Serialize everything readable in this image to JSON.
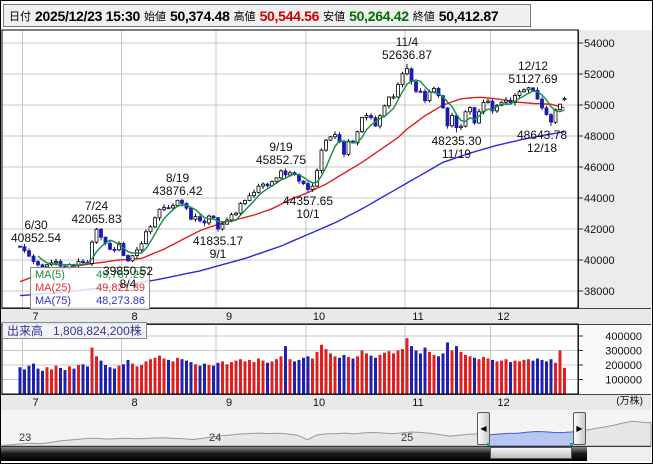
{
  "info_bar": {
    "date_label": "日付",
    "date_value": "2025/12/23 15:30",
    "open_label": "始値",
    "open_value": "50,374.48",
    "high_label": "高値",
    "high_value": "50,544.56",
    "low_label": "安値",
    "low_value": "50,264.42",
    "close_label": "終値",
    "close_value": "50,412.87"
  },
  "colors": {
    "high": "#cc0000",
    "low": "#007000",
    "text": "#000000",
    "grid": "#c8c8c8",
    "border": "#000000",
    "candle_up_fill": "#ffffff",
    "candle_up_stroke": "#000000",
    "candle_down": "#1b1bb3",
    "vol_up": "#e02020",
    "vol_down": "#2020b0",
    "ma5": "#0f8f3f",
    "ma25": "#e02020",
    "ma75": "#2a2ae0",
    "nav_line": "#999999",
    "nav_fill": "#e6e6e6",
    "nav_win_line": "#4a5fd0",
    "nav_win_fill": "#b8c6f2"
  },
  "ma_legend": [
    {
      "label": "MA(5)",
      "value": "49,767.25",
      "color": "#1a8a4a"
    },
    {
      "label": "MA(25)",
      "value": "49,821.39",
      "color": "#e03030"
    },
    {
      "label": "MA(75)",
      "value": "48,273.86",
      "color": "#3333cc"
    }
  ],
  "volume_box": {
    "label": "出来高",
    "value": "1,808,824,200株"
  },
  "icons": {
    "left_arrow": "◀",
    "right_arrow": "▶"
  },
  "chart_data": {
    "type": "candlestick+volume",
    "title": "",
    "price_axis": {
      "ticks": [
        54000,
        52000,
        50000,
        48000,
        46000,
        44000,
        42000,
        40000,
        38000
      ],
      "range_top": 55000,
      "range_bottom": 37000
    },
    "volume_axis": {
      "ticks": [
        400000,
        300000,
        200000,
        100000
      ],
      "unit": "(万株)"
    },
    "month_labels": [
      "7",
      "8",
      "9",
      "10",
      "11",
      "12"
    ],
    "month_start_indexes": [
      1,
      23,
      44,
      64,
      86,
      105
    ],
    "closes": [
      40853,
      40600,
      40250,
      39900,
      39690,
      39560,
      39690,
      39820,
      39910,
      39600,
      39480,
      39700,
      39670,
      39910,
      39850,
      39780,
      41150,
      41990,
      41470,
      41080,
      40690,
      40660,
      41080,
      40290,
      39950,
      40280,
      40650,
      41050,
      41820,
      42140,
      42720,
      43270,
      43380,
      43360,
      43510,
      43850,
      43650,
      43340,
      42630,
      42800,
      42520,
      42390,
      42830,
      42720,
      42000,
      42310,
      42580,
      42920,
      43020,
      43640,
      43840,
      44150,
      44370,
      44770,
      44900,
      44790,
      45060,
      45300,
      45750,
      45490,
      45630,
      45510,
      45090,
      44930,
      44550,
      44770,
      45770,
      47090,
      47730,
      47950,
      48090,
      47620,
      46820,
      47670,
      47560,
      48280,
      49190,
      49320,
      49180,
      48640,
      49300,
      49950,
      50510,
      50520,
      51310,
      52010,
      52340,
      51500,
      50890,
      50880,
      50280,
      50840,
      51070,
      50600,
      49820,
      48660,
      49320,
      48540,
      48630,
      49560,
      49830,
      48840,
      49560,
      50170,
      50250,
      49620,
      49980,
      50180,
      50310,
      50170,
      50620,
      50860,
      50980,
      51110,
      50950,
      50380,
      49810,
      49380,
      48890,
      49700,
      50050,
      50413
    ],
    "volumes": [
      185000,
      170000,
      195000,
      210000,
      175000,
      160000,
      185000,
      170000,
      195000,
      180000,
      165000,
      190000,
      175000,
      200000,
      205000,
      190000,
      320000,
      260000,
      230000,
      200000,
      185000,
      175000,
      195000,
      205000,
      235000,
      210000,
      190000,
      200000,
      225000,
      240000,
      250000,
      265000,
      245000,
      235000,
      225000,
      250000,
      240000,
      230000,
      220000,
      205000,
      195000,
      210000,
      200000,
      195000,
      215000,
      225000,
      205000,
      220000,
      230000,
      240000,
      225000,
      235000,
      220000,
      245000,
      230000,
      215000,
      225000,
      240000,
      260000,
      330000,
      240000,
      225000,
      235000,
      250000,
      260000,
      245000,
      290000,
      340000,
      310000,
      280000,
      260000,
      250000,
      270000,
      255000,
      245000,
      260000,
      300000,
      280000,
      265000,
      250000,
      270000,
      285000,
      295000,
      280000,
      300000,
      310000,
      385000,
      330000,
      300000,
      280000,
      320000,
      290000,
      270000,
      260000,
      280000,
      355000,
      300000,
      330000,
      290000,
      270000,
      260000,
      250000,
      240000,
      255000,
      245000,
      235000,
      225000,
      230000,
      240000,
      220000,
      230000,
      225000,
      235000,
      240000,
      230000,
      245000,
      235000,
      225000,
      240000,
      215000,
      300000,
      181000
    ],
    "overrides": {
      "0": {
        "high": 40852.54
      },
      "17": {
        "high": 42065.83
      },
      "24": {
        "low": 39850.52
      },
      "35": {
        "high": 43876.42
      },
      "44": {
        "low": 41835.17
      },
      "58": {
        "high": 45852.75
      },
      "64": {
        "low": 44357.65
      },
      "86": {
        "high": 52636.87
      },
      "97": {
        "low": 48235.3
      },
      "114": {
        "high": 51127.69
      },
      "118": {
        "low": 48643.78
      },
      "121": {
        "open": 50374.48,
        "high": 50544.56,
        "low": 50264.42,
        "close": 50412.87
      }
    },
    "ma25_points": [
      [
        0,
        38600
      ],
      [
        6,
        39250
      ],
      [
        12,
        39600
      ],
      [
        17,
        39800
      ],
      [
        22,
        40000
      ],
      [
        27,
        40100
      ],
      [
        32,
        40700
      ],
      [
        36,
        41300
      ],
      [
        40,
        41900
      ],
      [
        44,
        42300
      ],
      [
        48,
        42600
      ],
      [
        52,
        42900
      ],
      [
        56,
        43300
      ],
      [
        60,
        43900
      ],
      [
        64,
        44350
      ],
      [
        68,
        44900
      ],
      [
        72,
        45600
      ],
      [
        76,
        46300
      ],
      [
        80,
        47100
      ],
      [
        84,
        47900
      ],
      [
        86,
        48450
      ],
      [
        90,
        49300
      ],
      [
        94,
        50000
      ],
      [
        98,
        50400
      ],
      [
        102,
        50500
      ],
      [
        106,
        50400
      ],
      [
        110,
        50200
      ],
      [
        114,
        50100
      ],
      [
        118,
        50050
      ],
      [
        121,
        49821.39
      ]
    ],
    "ma75_points": [
      [
        0,
        37700
      ],
      [
        10,
        37950
      ],
      [
        20,
        38250
      ],
      [
        30,
        38700
      ],
      [
        40,
        39300
      ],
      [
        50,
        40100
      ],
      [
        58,
        40900
      ],
      [
        64,
        41650
      ],
      [
        70,
        42400
      ],
      [
        76,
        43300
      ],
      [
        82,
        44300
      ],
      [
        88,
        45300
      ],
      [
        94,
        46300
      ],
      [
        100,
        46900
      ],
      [
        106,
        47400
      ],
      [
        112,
        47800
      ],
      [
        117,
        48080
      ],
      [
        121,
        48273.86
      ]
    ],
    "annotations": [
      {
        "date": "6/30",
        "value": "40852.54",
        "day": 0,
        "side": "above"
      },
      {
        "date": "7/24",
        "value": "42065.83",
        "day": 17,
        "side": "above"
      },
      {
        "date": "8/4",
        "value": "39850.52",
        "day": 24,
        "side": "below"
      },
      {
        "date": "8/19",
        "value": "43876.42",
        "day": 35,
        "side": "above"
      },
      {
        "date": "9/1",
        "value": "41835.17",
        "day": 44,
        "side": "below"
      },
      {
        "date": "9/19",
        "value": "45852.75",
        "day": 58,
        "side": "above"
      },
      {
        "date": "10/1",
        "value": "44357.65",
        "day": 64,
        "side": "below"
      },
      {
        "date": "11/4",
        "value": "52636.87",
        "day": 86,
        "side": "above"
      },
      {
        "date": "11/19",
        "value": "48235.30",
        "day": 97,
        "side": "below"
      },
      {
        "date": "12/12",
        "value": "51127.69",
        "day": 114,
        "side": "above"
      },
      {
        "date": "12/18",
        "value": "48643.78",
        "day": 118,
        "side": "below"
      }
    ],
    "navigator": {
      "values": [
        25750,
        26500,
        27400,
        28000,
        27500,
        28800,
        30500,
        31500,
        32400,
        33400,
        33300,
        32600,
        33100,
        33500,
        32900,
        33200,
        33800,
        34000,
        33400,
        33000,
        32200,
        33300,
        35000,
        36200,
        37100,
        38100,
        38700,
        39100,
        38600,
        39000,
        38100,
        36800,
        31800,
        37200,
        38200,
        38600,
        39100,
        38200,
        39400,
        39800,
        39150,
        38600,
        39500,
        40300,
        39800,
        38800,
        37100,
        35800,
        36900,
        37800,
        38200,
        37100,
        38000,
        38800,
        39000,
        40100,
        40800,
        40400,
        39600,
        39900,
        40500,
        41800,
        43900,
        45500,
        47500,
        49800,
        52000,
        51000,
        50400
      ],
      "years": [
        "23",
        "24",
        "25"
      ],
      "year_x": [
        19,
        209,
        401
      ],
      "window": [
        490,
        573
      ]
    }
  }
}
